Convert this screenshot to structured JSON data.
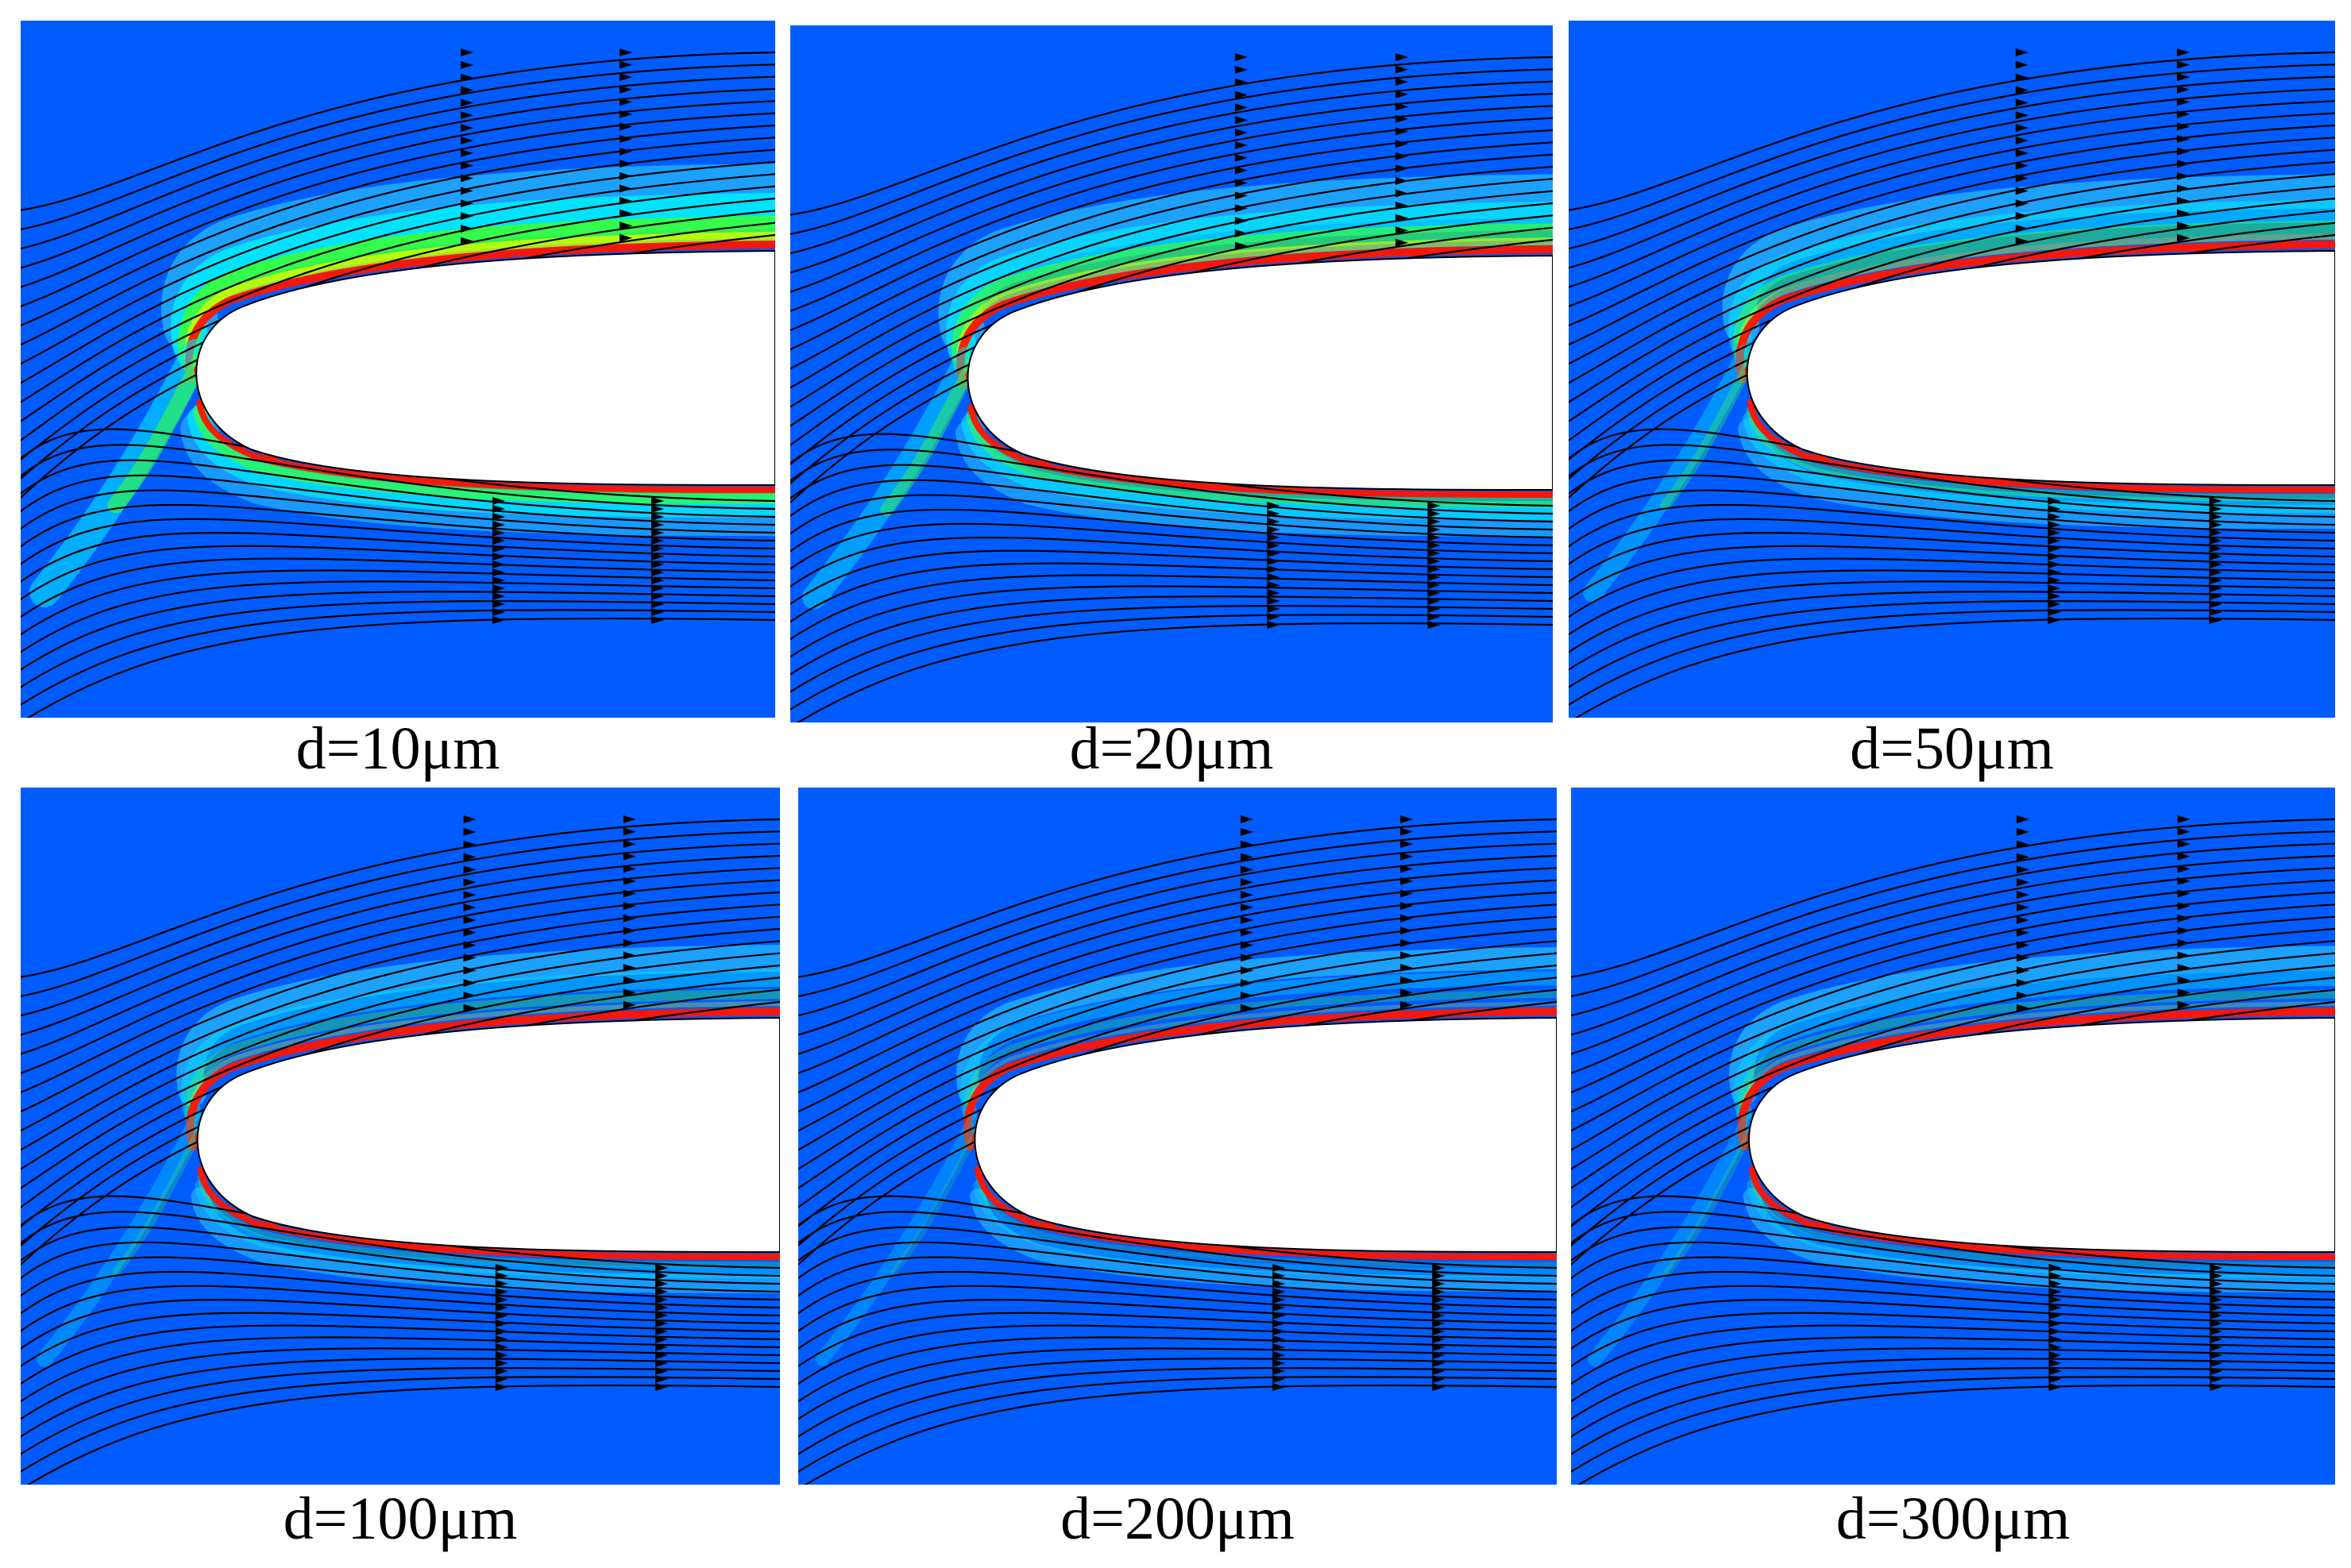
{
  "colors": {
    "background_field": "#005cff",
    "light_blue": "#1fa8ff",
    "cyan": "#00e6ff",
    "green": "#39ff3a",
    "yellow": "#d4ff00",
    "red": "#ff1400",
    "streamline": "#000000",
    "body": "#ffffff"
  },
  "panels": [
    {
      "label": "d=10μm",
      "intensity": 1.0
    },
    {
      "label": "d=20μm",
      "intensity": 0.75
    },
    {
      "label": "d=50μm",
      "intensity": 0.55
    },
    {
      "label": "d=100μm",
      "intensity": 0.4
    },
    {
      "label": "d=200μm",
      "intensity": 0.3
    },
    {
      "label": "d=300μm",
      "intensity": 0.35
    }
  ]
}
